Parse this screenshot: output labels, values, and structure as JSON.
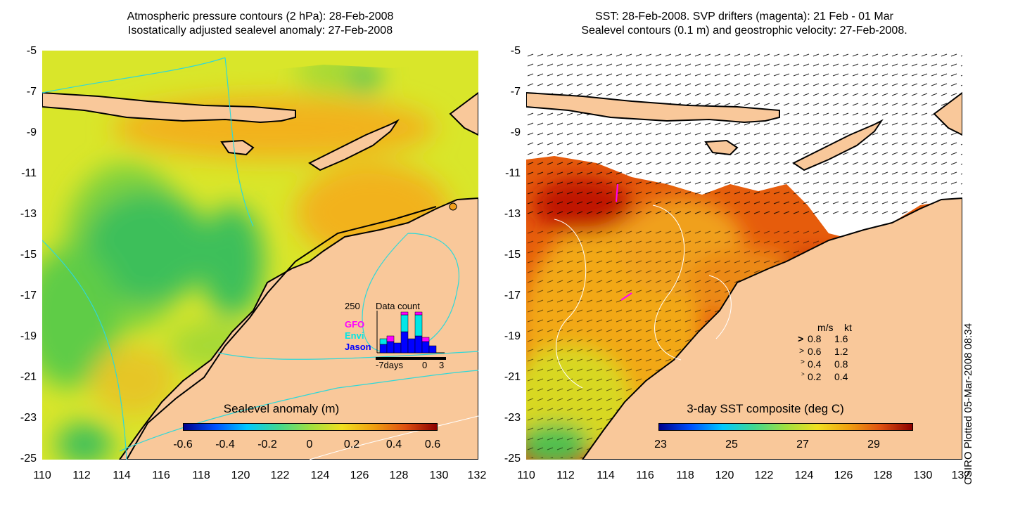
{
  "left_panel": {
    "title_line1": "Atmospheric pressure contours (2 hPa): 28-Feb-2008",
    "title_line2": "Isostatically adjusted sealevel anomaly: 27-Feb-2008",
    "colorbar": {
      "title": "Sealevel anomaly (m)",
      "ticks": [
        "-0.6",
        "-0.4",
        "-0.2",
        "0",
        "0.2",
        "0.4",
        "0.6"
      ]
    },
    "inset": {
      "title": "Data count",
      "max_label": "250",
      "legend": [
        {
          "label": "GFO",
          "color": "#ff00ff"
        },
        {
          "label": "Envi",
          "color": "#00e6e6"
        },
        {
          "label": "Jason",
          "color": "#0000ff"
        }
      ],
      "x_ticks": [
        "-7days",
        "0",
        "3"
      ]
    }
  },
  "right_panel": {
    "title_line1": "SST: 28-Feb-2008. SVP drifters (magenta): 21 Feb - 01 Mar",
    "title_line2": "Sealevel contours (0.1 m) and geostrophic velocity: 27-Feb-2008.",
    "colorbar": {
      "title": "3-day SST composite (deg C)",
      "ticks": [
        "23",
        "25",
        "27",
        "29"
      ]
    },
    "velocity_legend": {
      "header_ms": "m/s",
      "header_kt": "kt",
      "rows": [
        {
          "ms": "0.8",
          "kt": "1.6"
        },
        {
          "ms": "0.6",
          "kt": "1.2"
        },
        {
          "ms": "0.4",
          "kt": "0.8"
        },
        {
          "ms": "0.2",
          "kt": "0.4"
        }
      ]
    }
  },
  "axes": {
    "y_ticks": [
      "-5",
      "-7",
      "-9",
      "-11",
      "-13",
      "-15",
      "-17",
      "-19",
      "-21",
      "-23",
      "-25"
    ],
    "x_ticks": [
      "110",
      "112",
      "114",
      "116",
      "118",
      "120",
      "122",
      "124",
      "126",
      "128",
      "130",
      "132"
    ]
  },
  "credit": "CSIRO Plotted 05-Mar-2008 08:34",
  "colors": {
    "land": "#f9c89a",
    "sla_low": "#00008c",
    "sla_high": "#8c0000",
    "ocean_green": "#7fd23c"
  }
}
